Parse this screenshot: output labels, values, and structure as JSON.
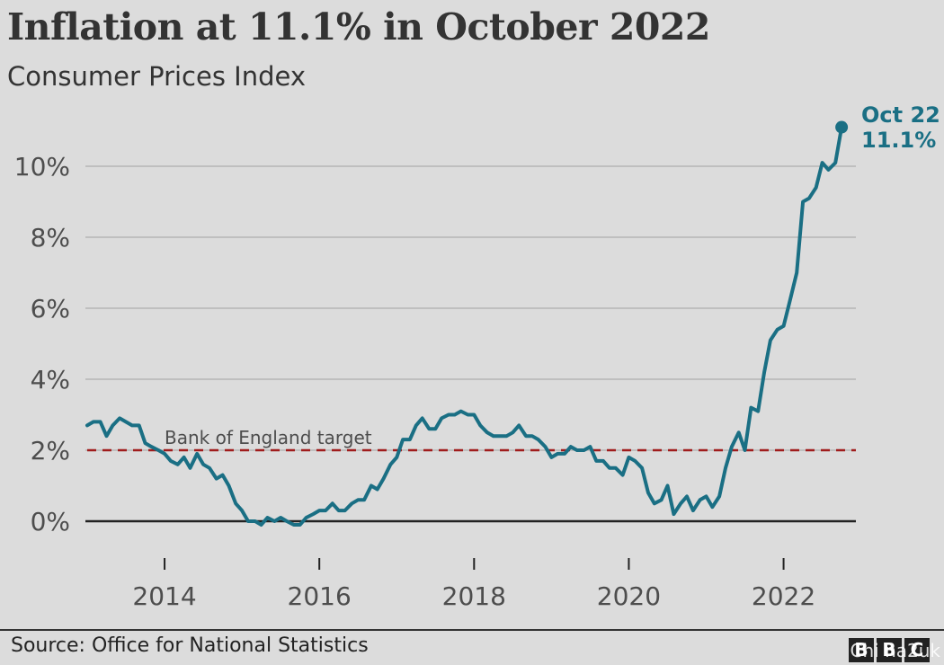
{
  "header": {
    "title": "Inflation at 11.1% in October 2022",
    "subtitle": "Consumer Prices Index"
  },
  "footer": {
    "source": "Source: Office for National Statistics",
    "logo_letters": [
      "B",
      "B",
      "C"
    ],
    "watermark": "Chi na2uk"
  },
  "colors": {
    "line": "#1a6f84",
    "target": "#a01c1c",
    "grid": "#b5b5b5",
    "text": "#4d4d4d",
    "axis": "#222222"
  },
  "chart_data": {
    "type": "line",
    "title": "Inflation at 11.1% in October 2022",
    "subtitle": "Consumer Prices Index",
    "y_unit": "%",
    "ylim": [
      -1,
      11.5
    ],
    "yticks": [
      0,
      2,
      4,
      6,
      8,
      10
    ],
    "ytick_labels": [
      "0%",
      "2%",
      "4%",
      "6%",
      "8%",
      "10%"
    ],
    "xlim": [
      2013.0,
      2022.83
    ],
    "xticks": [
      2014,
      2016,
      2018,
      2020,
      2022
    ],
    "xtick_labels": [
      "2014",
      "2016",
      "2018",
      "2020",
      "2022"
    ],
    "grid": true,
    "reference_line": {
      "value": 2,
      "label": "Bank of England target",
      "style": "dashed"
    },
    "end_annotation": {
      "label_line1": "Oct 22",
      "label_line2": "11.1%"
    },
    "series": [
      {
        "x": [
          2013.0,
          2013.08,
          2013.17,
          2013.25,
          2013.33,
          2013.42,
          2013.5,
          2013.58,
          2013.67,
          2013.75,
          2013.83,
          2013.92,
          2014.0,
          2014.08,
          2014.17,
          2014.25,
          2014.33,
          2014.42,
          2014.5,
          2014.58,
          2014.67,
          2014.75,
          2014.83,
          2014.92,
          2015.0,
          2015.08,
          2015.17,
          2015.25,
          2015.33,
          2015.42,
          2015.5,
          2015.58,
          2015.67,
          2015.75,
          2015.83,
          2015.92,
          2016.0,
          2016.08,
          2016.17,
          2016.25,
          2016.33,
          2016.42,
          2016.5,
          2016.58,
          2016.67,
          2016.75,
          2016.83,
          2016.92,
          2017.0,
          2017.08,
          2017.17,
          2017.25,
          2017.33,
          2017.42,
          2017.5,
          2017.58,
          2017.67,
          2017.75,
          2017.83,
          2017.92,
          2018.0,
          2018.08,
          2018.17,
          2018.25,
          2018.33,
          2018.42,
          2018.5,
          2018.58,
          2018.67,
          2018.75,
          2018.83,
          2018.92,
          2019.0,
          2019.08,
          2019.17,
          2019.25,
          2019.33,
          2019.42,
          2019.5,
          2019.58,
          2019.67,
          2019.75,
          2019.83,
          2019.92,
          2020.0,
          2020.08,
          2020.17,
          2020.25,
          2020.33,
          2020.42,
          2020.5,
          2020.58,
          2020.67,
          2020.75,
          2020.83,
          2020.92,
          2021.0,
          2021.08,
          2021.17,
          2021.25,
          2021.33,
          2021.42,
          2021.5,
          2021.58,
          2021.67,
          2021.75,
          2021.83,
          2021.92,
          2022.0,
          2022.08,
          2022.17,
          2022.25,
          2022.33,
          2022.42,
          2022.5,
          2022.58,
          2022.67,
          2022.75
        ],
        "values": [
          2.7,
          2.8,
          2.8,
          2.4,
          2.7,
          2.9,
          2.8,
          2.7,
          2.7,
          2.2,
          2.1,
          2.0,
          1.9,
          1.7,
          1.6,
          1.8,
          1.5,
          1.9,
          1.6,
          1.5,
          1.2,
          1.3,
          1.0,
          0.5,
          0.3,
          0.0,
          0.0,
          -0.1,
          0.1,
          0.0,
          0.1,
          0.0,
          -0.1,
          -0.1,
          0.1,
          0.2,
          0.3,
          0.3,
          0.5,
          0.3,
          0.3,
          0.5,
          0.6,
          0.6,
          1.0,
          0.9,
          1.2,
          1.6,
          1.8,
          2.3,
          2.3,
          2.7,
          2.9,
          2.6,
          2.6,
          2.9,
          3.0,
          3.0,
          3.1,
          3.0,
          3.0,
          2.7,
          2.5,
          2.4,
          2.4,
          2.4,
          2.5,
          2.7,
          2.4,
          2.4,
          2.3,
          2.1,
          1.8,
          1.9,
          1.9,
          2.1,
          2.0,
          2.0,
          2.1,
          1.7,
          1.7,
          1.5,
          1.5,
          1.3,
          1.8,
          1.7,
          1.5,
          0.8,
          0.5,
          0.6,
          1.0,
          0.2,
          0.5,
          0.7,
          0.3,
          0.6,
          0.7,
          0.4,
          0.7,
          1.5,
          2.1,
          2.5,
          2.0,
          3.2,
          3.1,
          4.2,
          5.1,
          5.4,
          5.5,
          6.2,
          7.0,
          9.0,
          9.1,
          9.4,
          10.1,
          9.9,
          10.1,
          11.1
        ]
      }
    ]
  }
}
